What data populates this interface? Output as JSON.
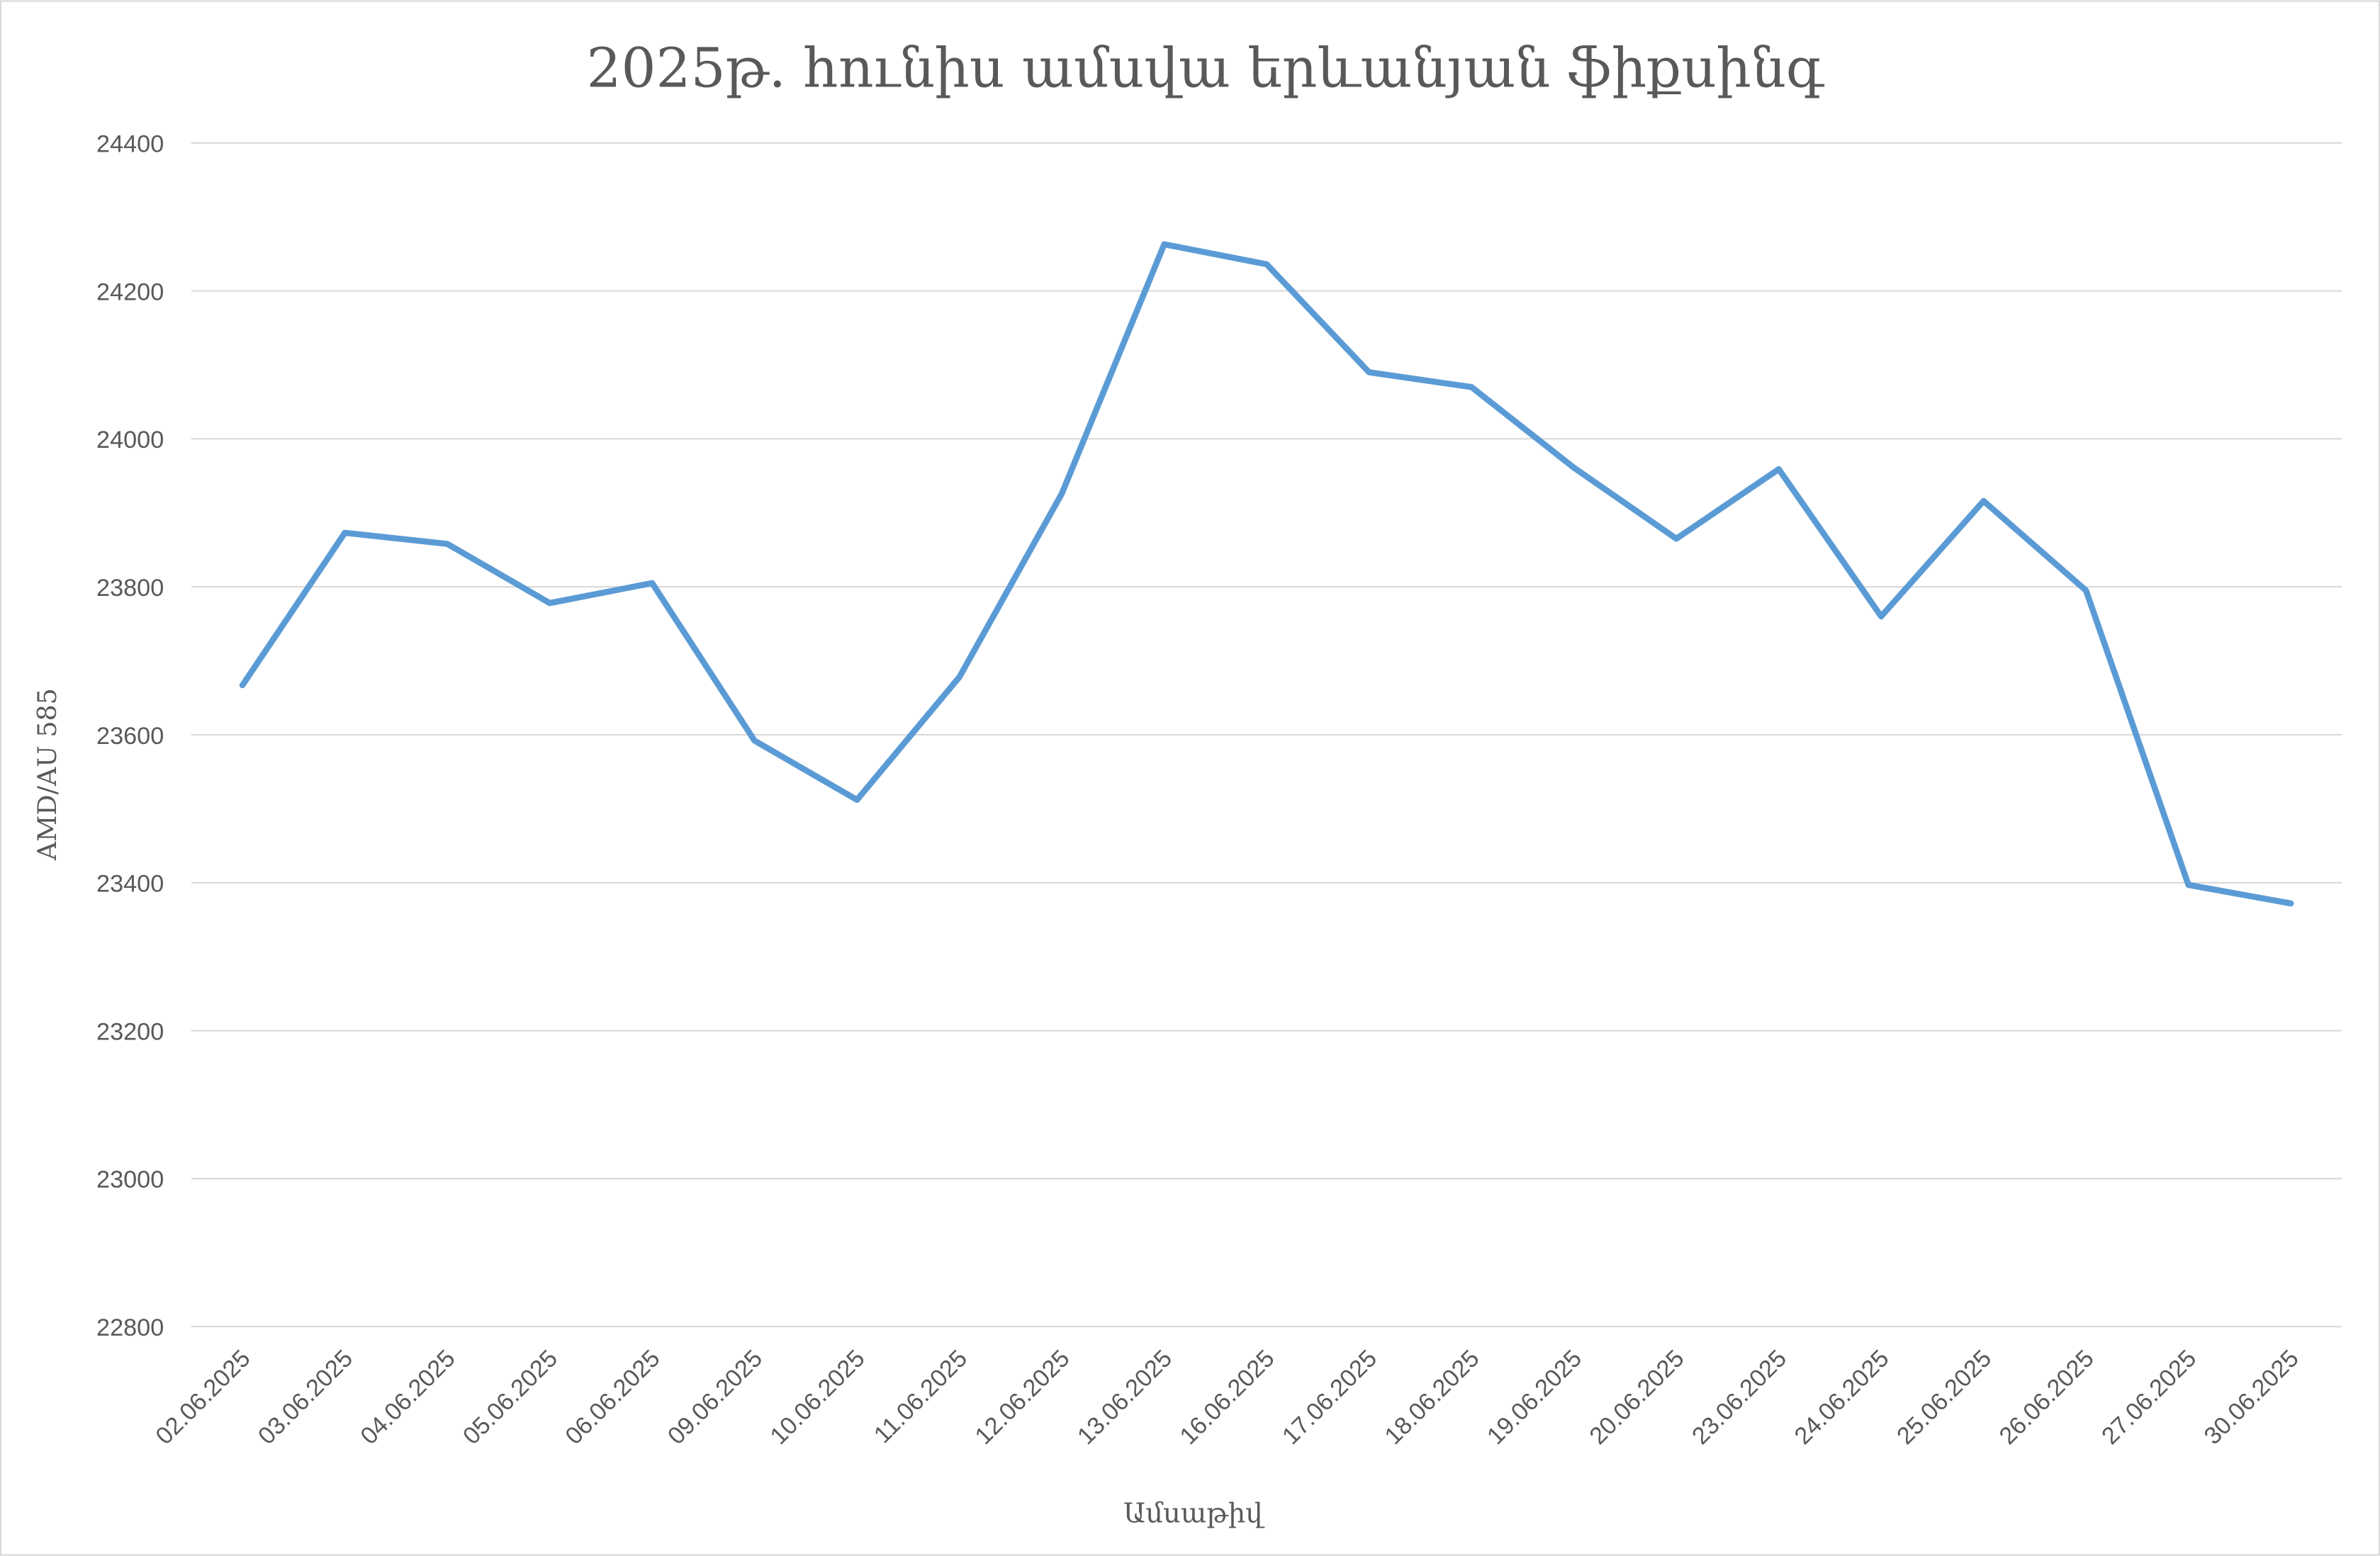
{
  "chart_data": {
    "type": "line",
    "title": "2025թ. հունիս ամսվա երևանյան ֆիքսինգ",
    "x_label": "Ամսաթիվ",
    "y_label": "AMD/AU 585",
    "categories": [
      "02.06.2025",
      "03.06.2025",
      "04.06.2025",
      "05.06.2025",
      "06.06.2025",
      "09.06.2025",
      "10.06.2025",
      "11.06.2025",
      "12.06.2025",
      "13.06.2025",
      "16.06.2025",
      "17.06.2025",
      "18.06.2025",
      "19.06.2025",
      "20.06.2025",
      "23.06.2025",
      "24.06.2025",
      "25.06.2025",
      "26.06.2025",
      "27.06.2025",
      "30.06.2025"
    ],
    "series": [
      {
        "name": "AMD/AU 585",
        "color": "#5b9bd5",
        "values": [
          23667,
          23873,
          23858,
          23778,
          23805,
          23592,
          23512,
          23678,
          23926,
          24263,
          24236,
          24090,
          24070,
          23961,
          23865,
          23959,
          23760,
          23916,
          23795,
          23397,
          23372
        ]
      }
    ],
    "ylim": [
      22800,
      24400
    ],
    "yticks": [
      22800,
      23000,
      23200,
      23400,
      23600,
      23800,
      24000,
      24200,
      24400
    ],
    "grid": true,
    "legend": false
  }
}
